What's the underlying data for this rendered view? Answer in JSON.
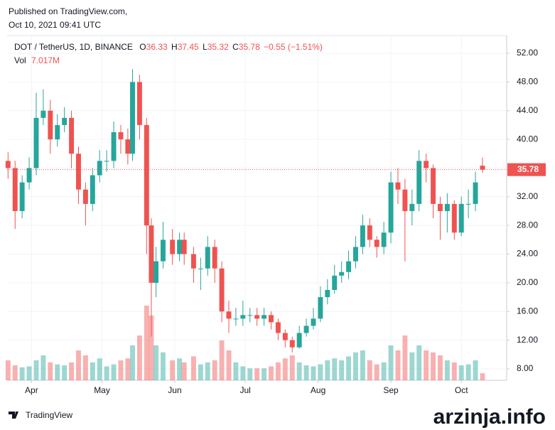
{
  "chart_data": {
    "type": "candlestick",
    "published": "Published on TradingView.com,",
    "timestamp": "Oct 10, 2021 09:41 UTC",
    "symbol": "DOT / TetherUS, 1D, BINANCE",
    "ohlc_prefixes": [
      "O",
      "H",
      "L",
      "C"
    ],
    "change": "−0.55",
    "change_pct": "(−1.51%)",
    "volume_name": "Vol",
    "volume_value_label": "7.017M",
    "brand": "TradingView",
    "watermark": "arzinja.info",
    "up_color": "#26a69a",
    "down_color": "#ef5350",
    "x": [
      0,
      3,
      6,
      9,
      12,
      15,
      18,
      21,
      24,
      27,
      30,
      33,
      36,
      39,
      42,
      45,
      48,
      51,
      53,
      56,
      59,
      61,
      63,
      66,
      70,
      73,
      75,
      79,
      82,
      85,
      88,
      91,
      94,
      97,
      100,
      103,
      106,
      109,
      112,
      115,
      118,
      121,
      124,
      127,
      130,
      133,
      136,
      139,
      142,
      145,
      148,
      151,
      154,
      157,
      160,
      163,
      166,
      169,
      172,
      175,
      178,
      181,
      184,
      187,
      190,
      193,
      196,
      199,
      202
    ],
    "open": [
      37,
      36,
      30,
      34,
      36,
      43,
      44,
      40,
      42,
      43,
      38,
      33,
      31,
      35,
      37,
      37,
      41,
      40,
      38,
      48,
      42,
      28,
      20,
      23,
      26,
      24,
      26,
      24,
      22,
      22,
      25,
      22,
      16,
      15,
      15,
      15.5,
      15.5,
      15,
      15.5,
      14.5,
      13,
      12,
      11,
      13,
      14,
      15,
      18,
      19,
      21,
      21.5,
      23,
      25,
      28,
      26,
      25,
      27,
      34,
      33,
      30,
      31,
      37,
      36,
      31,
      30,
      31,
      27,
      31,
      31,
      36.33
    ],
    "high": [
      38.2,
      37,
      35,
      37.5,
      46.5,
      47,
      45.5,
      43.5,
      44.5,
      44,
      39,
      34,
      36,
      38.5,
      38.5,
      42.5,
      42,
      41.5,
      49.8,
      49,
      43,
      29,
      25,
      28.5,
      27.5,
      27,
      27,
      25,
      23.5,
      26.5,
      26,
      23,
      17.5,
      16.5,
      17.5,
      16.5,
      16.5,
      16.5,
      16,
      15,
      13.5,
      12.5,
      14,
      15,
      16.5,
      19.5,
      20.5,
      22.5,
      23,
      24.5,
      26.5,
      29.5,
      29,
      26.5,
      28.5,
      35.5,
      36,
      34.5,
      33,
      38.5,
      38,
      36.5,
      32,
      32.5,
      31.5,
      32,
      33,
      35.5,
      37.45
    ],
    "low": [
      34.5,
      27.5,
      29,
      33,
      35,
      42,
      38,
      39,
      41,
      36,
      31,
      28,
      30,
      34,
      35.5,
      36,
      38,
      36.5,
      37,
      40,
      24,
      12.5,
      18,
      22,
      22.5,
      23,
      22.5,
      20,
      19,
      21,
      20,
      14.5,
      13,
      14,
      14,
      14.5,
      14,
      14,
      13.5,
      12,
      11,
      10.3,
      10.8,
      12.5,
      13.5,
      14.5,
      17,
      18.5,
      20,
      20.5,
      22,
      24,
      25,
      23.5,
      24,
      25.5,
      31,
      23,
      28,
      30,
      34,
      29,
      26,
      27,
      26,
      26.5,
      29,
      30,
      35.32
    ],
    "close": [
      36,
      30,
      34,
      36,
      43,
      44,
      40,
      42,
      43,
      38,
      33,
      31,
      35,
      37,
      37,
      41,
      40,
      38,
      48,
      42,
      28,
      20,
      23,
      26,
      24,
      26,
      24,
      22,
      22,
      25,
      22,
      16,
      15,
      15,
      15.5,
      15.5,
      15,
      15.5,
      14.5,
      13,
      12,
      11,
      13,
      14,
      15,
      18,
      19,
      21,
      21.5,
      23,
      25,
      28,
      26,
      25,
      27,
      34,
      33,
      30,
      31,
      37,
      36,
      31,
      30,
      31,
      27,
      31,
      31,
      34,
      35.78
    ],
    "volume": [
      20,
      15,
      13,
      14,
      20,
      25,
      18,
      16,
      15,
      18,
      30,
      25,
      18,
      22,
      14,
      16,
      20,
      22,
      35,
      45,
      75,
      65,
      35,
      28,
      20,
      22,
      18,
      24,
      16,
      18,
      20,
      40,
      30,
      18,
      14,
      12,
      12,
      12,
      14,
      18,
      22,
      25,
      18,
      15,
      14,
      16,
      20,
      22,
      20,
      24,
      28,
      30,
      20,
      16,
      18,
      35,
      30,
      45,
      28,
      35,
      30,
      28,
      25,
      20,
      18,
      15,
      16,
      20,
      7.017
    ],
    "xlim": [
      -0.4,
      212.3
    ],
    "xticks": [
      {
        "value": 10,
        "label": "Apr"
      },
      {
        "value": 40,
        "label": "May"
      },
      {
        "value": 71,
        "label": "Jun"
      },
      {
        "value": 101,
        "label": "Jul"
      },
      {
        "value": 132,
        "label": "Aug"
      },
      {
        "value": 163,
        "label": "Sep"
      },
      {
        "value": 193,
        "label": "Oct"
      }
    ],
    "ylim": [
      6.41,
      54.48
    ],
    "yticks": [
      {
        "value": 8,
        "label": "8.00"
      },
      {
        "value": 12,
        "label": "12.00"
      },
      {
        "value": 16,
        "label": "16.00"
      },
      {
        "value": 20,
        "label": "20.00"
      },
      {
        "value": 24,
        "label": "24.00"
      },
      {
        "value": 28,
        "label": "28.00"
      },
      {
        "value": 32,
        "label": "32.00"
      },
      {
        "value": 36,
        "label": "36.00"
      },
      {
        "value": 40,
        "label": "40.00"
      },
      {
        "value": 44,
        "label": "44.00"
      },
      {
        "value": 48,
        "label": "48.00"
      },
      {
        "value": 52,
        "label": "52.00"
      }
    ],
    "grid": true
  }
}
